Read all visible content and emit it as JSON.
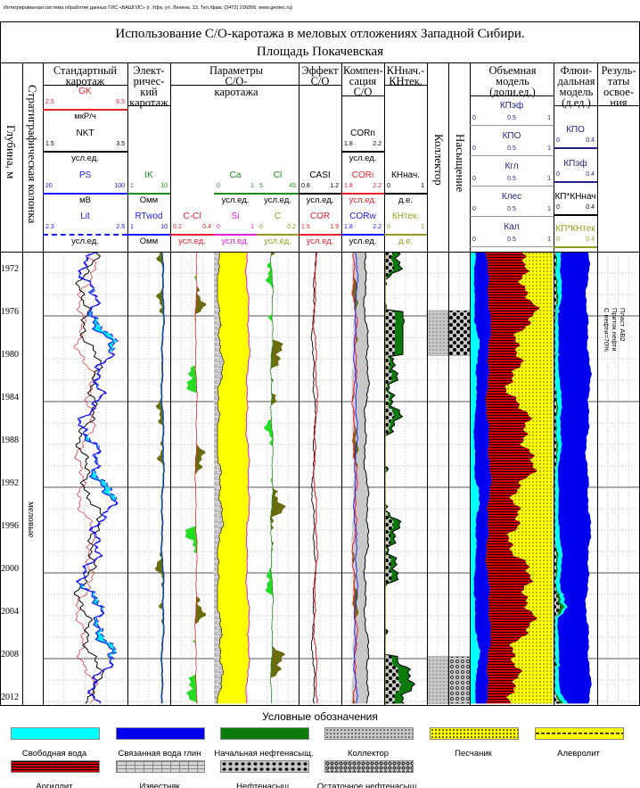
{
  "header_note": "Интегрированная система обработки данных ГИС «БАШГИС» (г. Уфа, ул. Ленина, 13. Тел./факс (3472) 226056; www.geotec.ru)",
  "title": {
    "line1": "Использование С/О-каротажа в меловых отложениях Западной Сибири.",
    "line2": "Площадь Покачевская"
  },
  "columns": {
    "depth": "Глубина, м",
    "strat": "Стратиграфическая колонка",
    "standard": "Стандартный каротаж",
    "electric": "Элект-ричес-кий каротаж",
    "co_params": "Параметры С/О-каротажа",
    "co_effect": "Эффект С/О",
    "compensation": "Компен-сация С/О",
    "kn": "КНнач.-КНтек.",
    "collector": "Коллектор",
    "saturation": "Насыщение",
    "volume_model": "Объемная модель (доли.ед.)",
    "fluid_model": "Флюи-дальная модель (д.ед.)",
    "results": "Резуль-таты освое-ния"
  },
  "scales": [
    {
      "label": "GK",
      "min": "2.5",
      "max": "6.5",
      "unit": "мкР/ч",
      "color": "#e8202a",
      "dash": false
    },
    {
      "label": "NKT",
      "min": "1.5",
      "max": "3.5",
      "unit": "усл.ед.",
      "color": "#000000",
      "dash": false
    },
    {
      "label": "PS",
      "min": "20",
      "max": "100",
      "unit": "мВ",
      "color": "#1a1aff",
      "dash": false
    },
    {
      "label": "Lit",
      "min": "2.3",
      "max": "2.9",
      "unit": "усл.ед.",
      "color": "#1a1aff",
      "dash": true
    },
    {
      "label": "IK",
      "min": "1",
      "max": "10",
      "unit": "Омм",
      "color": "#1a8c1a",
      "dash": false
    },
    {
      "label": "RTwod",
      "min": "1",
      "max": "10",
      "unit": "Омм",
      "color": "#1a1aff",
      "dash": false
    },
    {
      "label": "Ca",
      "min": "0",
      "max": "1",
      "unit": "усл.ед.",
      "color": "#1a8c1a",
      "dash": false
    },
    {
      "label": "Cl",
      "min": "5",
      "max": "45",
      "unit": "усл.ед.",
      "color": "#1a8c1a",
      "dash": false
    },
    {
      "label": "C-Cl",
      "min": "0.2",
      "max": "0.4",
      "unit": "усл.ед.",
      "color": "#e8202a",
      "dash": false
    },
    {
      "label": "Si",
      "min": "0",
      "max": "1",
      "unit": "усл.ед.",
      "color": "#e020e0",
      "dash": false
    },
    {
      "label": "C",
      "min": "0",
      "max": "0.2",
      "unit": "усл.ед.",
      "color": "#9a9a20",
      "dash": false
    },
    {
      "label": "CASI",
      "min": "0.8",
      "max": "1.2",
      "unit": "усл.ед.",
      "color": "#000000",
      "dash": false
    },
    {
      "label": "COR",
      "min": "1.5",
      "max": "1.9",
      "unit": "усл.ед.",
      "color": "#e8202a",
      "dash": false
    },
    {
      "label": "CORn",
      "min": "1.8",
      "max": "2.2",
      "unit": "усл.ед.",
      "color": "#000000",
      "dash": false
    },
    {
      "label": "CORi",
      "min": "1.8",
      "max": "2.2",
      "unit": "усл.ед.",
      "color": "#e8202a",
      "dash": false
    },
    {
      "label": "CORw",
      "min": "1.8",
      "max": "2.2",
      "unit": "усл.ед.",
      "color": "#1a1aff",
      "dash": false
    },
    {
      "label": "КНнач.",
      "min": "0",
      "max": "1",
      "unit": "д.е.",
      "color": "#000000",
      "dash": false
    },
    {
      "label": "КНтек.",
      "min": "0",
      "max": "1",
      "unit": "д.е.",
      "color": "#9a9a20",
      "dash": false
    },
    {
      "label": "КПэф",
      "min": "0",
      "mid": "0.5",
      "max": "1",
      "unit": "",
      "color": "#22228a",
      "dash": false
    },
    {
      "label": "КПО",
      "min": "0",
      "mid": "0.5",
      "max": "1",
      "unit": "",
      "color": "#22228a",
      "dash": false
    },
    {
      "label": "Кгл",
      "min": "0",
      "mid": "0.5",
      "max": "1",
      "unit": "",
      "color": "#22228a",
      "dash": false
    },
    {
      "label": "Клес",
      "min": "0",
      "mid": "0.5",
      "max": "1",
      "unit": "",
      "color": "#22228a",
      "dash": false
    },
    {
      "label": "Кал",
      "min": "0",
      "mid": "0.5",
      "max": "1",
      "unit": "",
      "color": "#22228a",
      "dash": false
    },
    {
      "label": "КПО",
      "min": "0",
      "max": "0.4",
      "unit": "",
      "color": "#22228a",
      "dash": false
    },
    {
      "label": "КПэф",
      "min": "0",
      "max": "0.4",
      "unit": "",
      "color": "#22228a",
      "dash": false
    },
    {
      "label": "КП*КНнач",
      "min": "0",
      "max": "0.4",
      "unit": "",
      "color": "#000000",
      "dash": false
    },
    {
      "label": "КП*КНтек",
      "min": "0",
      "max": "0.4",
      "unit": "",
      "color": "#9a9a20",
      "dash": false
    }
  ],
  "chart_data": {
    "type": "well-log",
    "depth_range": [
      1970,
      2012.3
    ],
    "depth_ticks": [
      1972,
      1976,
      1980,
      1984,
      1988,
      1992,
      1996,
      2000,
      2004,
      2008,
      2012
    ],
    "stratigraphy": "меловые",
    "collector_intervals": [
      [
        1975.5,
        1979.7
      ],
      [
        2007.8,
        2012.2
      ]
    ],
    "saturation_intervals": [
      {
        "from": 1975.5,
        "to": 1979.7,
        "type": "oil"
      },
      {
        "from": 2007.8,
        "to": 2012.2,
        "type": "residual"
      }
    ],
    "results": [
      "Пласт АВ2",
      "Приток нефти",
      "С нефти=70%"
    ]
  },
  "legend": {
    "title": "Условные обозначения",
    "items": [
      {
        "label": "Свободная вода",
        "pattern": "free-water"
      },
      {
        "label": "Связанная вода глин",
        "pattern": "bound-water"
      },
      {
        "label": "Начальная нефтенасыщ.",
        "pattern": "initial-oil"
      },
      {
        "label": "Коллектор",
        "pattern": "collector"
      },
      {
        "label": "Песчаник",
        "pattern": "sandstone"
      },
      {
        "label": "Алевролит",
        "pattern": "siltstone"
      },
      {
        "label": "Аргиллит",
        "pattern": "argillite"
      },
      {
        "label": "Известняк",
        "pattern": "limestone"
      },
      {
        "label": "Нефтенасыщ.",
        "pattern": "oil-saturated"
      },
      {
        "label": "Остаточное нефтенасыщ.",
        "pattern": "residual-oil"
      }
    ]
  },
  "colors": {
    "free_water": "#00ffff",
    "bound_water": "#0000ee",
    "oil": "#0a7a0a",
    "sand": "#ffff00",
    "clay": "#cc0000"
  }
}
